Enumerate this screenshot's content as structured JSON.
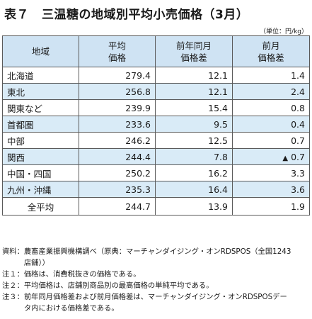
{
  "title": {
    "number": "表７",
    "text": "三温糖の地域別平均小売価格（3月）"
  },
  "unit": "（単位：円/kg）",
  "table": {
    "headers": {
      "region": "地域",
      "avg_price_line1": "平均",
      "avg_price_line2": "価格",
      "yoy_line1": "前年同月",
      "yoy_line2": "価格差",
      "mom_line1": "前月",
      "mom_line2": "価格差"
    },
    "rows": [
      {
        "region": "北海道",
        "avg": "279.4",
        "yoy": "12.1",
        "mom": "1.4",
        "mom_neg": false
      },
      {
        "region": "東北",
        "avg": "256.8",
        "yoy": "12.1",
        "mom": "2.4",
        "mom_neg": false
      },
      {
        "region": "関東など",
        "avg": "239.9",
        "yoy": "15.4",
        "mom": "0.8",
        "mom_neg": false
      },
      {
        "region": "首都圏",
        "avg": "233.6",
        "yoy": "9.5",
        "mom": "0.4",
        "mom_neg": false
      },
      {
        "region": "中部",
        "avg": "246.2",
        "yoy": "12.5",
        "mom": "0.7",
        "mom_neg": false
      },
      {
        "region": "関西",
        "avg": "244.4",
        "yoy": "7.8",
        "mom": "0.7",
        "mom_neg": true,
        "neg_mark": "▲"
      },
      {
        "region": "中国・四国",
        "avg": "250.2",
        "yoy": "16.2",
        "mom": "3.3",
        "mom_neg": false
      },
      {
        "region": "九州・沖縄",
        "avg": "235.3",
        "yoy": "16.4",
        "mom": "3.6",
        "mom_neg": false
      }
    ],
    "total": {
      "region": "全平均",
      "avg": "244.7",
      "yoy": "13.9",
      "mom": "1.9"
    }
  },
  "notes": [
    {
      "label": "資料：",
      "text": "農畜産業振興機構調べ（原典：マーチャンダイジング・オンRDSPOS（全国1243店舗））"
    },
    {
      "label": "注１：",
      "text": "価格は、消費税抜きの価格である。"
    },
    {
      "label": "注２：",
      "text": "平均価格は、店舗別商品別の最高価格の単純平均である。"
    },
    {
      "label": "注３：",
      "text": "前年同月価格差および前月価格差は、マーチャンダイジング・オンRDSPOSデータ内における価格差である。"
    }
  ],
  "colors": {
    "header_bg": "#cfe3f3",
    "shaded_cell_bg": "#d9ebf7",
    "border": "#5a5a5a"
  }
}
